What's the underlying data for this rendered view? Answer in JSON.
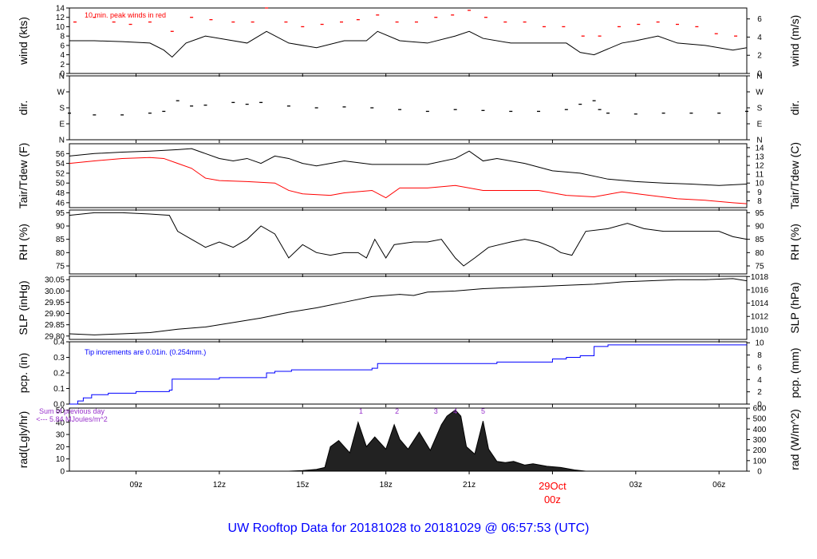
{
  "page_title": "UW Rooftop Data for 20181028  to  20181029 @ 06:57:53  (UTC)",
  "colors": {
    "black": "#000000",
    "red": "#ff0000",
    "blue": "#0000ff",
    "purple": "#9933cc",
    "title_blue": "#0000ff"
  },
  "x_axis": {
    "domain_hours": [
      6.6,
      31.0
    ],
    "ticks": [
      {
        "hour": 9,
        "label": "09z"
      },
      {
        "hour": 12,
        "label": "12z"
      },
      {
        "hour": 15,
        "label": "15z"
      },
      {
        "hour": 18,
        "label": "18z"
      },
      {
        "hour": 21,
        "label": "21z"
      },
      {
        "hour": 24,
        "label": ""
      },
      {
        "hour": 27,
        "label": "03z"
      },
      {
        "hour": 30,
        "label": "06z"
      }
    ],
    "day_marker": {
      "hour": 24,
      "line1": "29Oct",
      "line2": "00z",
      "color": "#ff0000"
    }
  },
  "chart_data": [
    {
      "type": "line",
      "id": "wind",
      "ylabel_left": "wind (kts)",
      "ylabel_right": "wind (m/s)",
      "ylim": [
        0,
        14
      ],
      "yticks_left": [
        0,
        2,
        4,
        6,
        8,
        10,
        12,
        14
      ],
      "yticks_right": [
        {
          "value": 0,
          "label": "0"
        },
        {
          "value": 3.89,
          "label": "2"
        },
        {
          "value": 7.78,
          "label": "4"
        },
        {
          "value": 11.66,
          "label": "6"
        }
      ],
      "annotation": "10 min. peak winds in red",
      "series": [
        {
          "style": "line",
          "color": "#000000",
          "x": [
            6.6,
            7.5,
            8.5,
            9.5,
            10.0,
            10.3,
            10.8,
            11.5,
            12.5,
            13.0,
            13.7,
            14.5,
            15.5,
            16.5,
            17.3,
            17.7,
            18.5,
            19.5,
            20.5,
            21.0,
            21.5,
            22.5,
            23.5,
            24.5,
            25.0,
            25.5,
            26.5,
            27.0,
            27.8,
            28.5,
            29.5,
            30.5,
            31.0
          ],
          "y": [
            7,
            7,
            6.8,
            6.5,
            5,
            3.5,
            6.5,
            8,
            7,
            6.5,
            9,
            6.5,
            5.5,
            7,
            7,
            9,
            7,
            6.5,
            8,
            9,
            7.5,
            6.5,
            6.5,
            6.5,
            4.5,
            4,
            6.5,
            7,
            8,
            6.5,
            6,
            5,
            5.5
          ]
        },
        {
          "style": "dashes",
          "color": "#ff0000",
          "x": [
            6.8,
            7.5,
            8.2,
            8.8,
            9.5,
            10.3,
            11.0,
            11.7,
            12.5,
            13.2,
            13.7,
            14.4,
            15.0,
            15.7,
            16.4,
            17.0,
            17.7,
            18.4,
            19.1,
            19.8,
            20.4,
            21.0,
            21.6,
            22.3,
            23.0,
            23.7,
            24.4,
            25.1,
            25.7,
            26.4,
            27.1,
            27.8,
            28.5,
            29.2,
            29.9,
            30.6
          ],
          "y": [
            11,
            12,
            11,
            10.5,
            11,
            9,
            12,
            11.5,
            11,
            11,
            14,
            11,
            10,
            10.5,
            11,
            11.5,
            12.5,
            11,
            11,
            12,
            12.5,
            13.5,
            12,
            11,
            11,
            10,
            10,
            8,
            8,
            10,
            10.5,
            11,
            10.5,
            10,
            8.5,
            8
          ]
        }
      ]
    },
    {
      "type": "scatter",
      "id": "dir",
      "ylabel_left": "dir.",
      "ylabel_right": "dir.",
      "ylim": [
        0,
        360
      ],
      "yticks_left": [
        {
          "value": 0,
          "label": "N"
        },
        {
          "value": 90,
          "label": "E"
        },
        {
          "value": 180,
          "label": "S"
        },
        {
          "value": 270,
          "label": "W"
        },
        {
          "value": 360,
          "label": "N"
        }
      ],
      "yticks_right": [
        {
          "value": 0,
          "label": "N"
        },
        {
          "value": 90,
          "label": "E"
        },
        {
          "value": 180,
          "label": "S"
        },
        {
          "value": 270,
          "label": "W"
        },
        {
          "value": 360,
          "label": "N"
        }
      ],
      "series": [
        {
          "style": "dashes",
          "color": "#000000",
          "x": [
            6.6,
            7.5,
            8.5,
            9.5,
            10.0,
            10.5,
            11.0,
            11.5,
            12.5,
            13.0,
            13.5,
            14.5,
            15.5,
            16.5,
            17.5,
            18.5,
            19.5,
            20.5,
            21.5,
            22.5,
            23.5,
            24.5,
            25.0,
            25.5,
            25.7,
            26.0,
            27.0,
            28.0,
            29.0,
            30.0,
            31.0
          ],
          "y": [
            150,
            140,
            140,
            150,
            160,
            220,
            190,
            195,
            210,
            200,
            210,
            190,
            180,
            185,
            180,
            170,
            160,
            170,
            165,
            160,
            160,
            170,
            200,
            220,
            170,
            150,
            145,
            150,
            150,
            150,
            160
          ]
        }
      ]
    },
    {
      "type": "line",
      "id": "temp",
      "ylabel_left": "Tair/Tdew (F)",
      "ylabel_right": "Tair/Tdew (C)",
      "ylim": [
        45,
        58
      ],
      "yticks_left": [
        46,
        48,
        50,
        52,
        54,
        56
      ],
      "yticks_right": [
        {
          "value": 46.4,
          "label": "8"
        },
        {
          "value": 48.2,
          "label": "9"
        },
        {
          "value": 50,
          "label": "10"
        },
        {
          "value": 51.8,
          "label": "11"
        },
        {
          "value": 53.6,
          "label": "12"
        },
        {
          "value": 55.4,
          "label": "13"
        },
        {
          "value": 57.2,
          "label": "14"
        }
      ],
      "series": [
        {
          "style": "line",
          "color": "#000000",
          "x": [
            6.6,
            7.5,
            8.5,
            9.5,
            10.5,
            11.0,
            11.5,
            12.0,
            12.5,
            13.0,
            13.5,
            14.0,
            14.5,
            15.0,
            15.5,
            16.5,
            17.5,
            18.5,
            19.5,
            20.5,
            21.0,
            21.5,
            22.0,
            23.0,
            24.0,
            25.0,
            26.0,
            27.0,
            28.0,
            29.0,
            30.0,
            31.0
          ],
          "y": [
            55.5,
            56,
            56.3,
            56.5,
            56.8,
            57,
            56,
            55,
            54.5,
            55,
            54,
            55.5,
            55,
            54,
            53.5,
            54.5,
            53.8,
            53.8,
            53.8,
            55,
            56.5,
            54.5,
            55,
            54,
            52.5,
            52,
            50.8,
            50.3,
            50,
            49.8,
            49.5,
            49.8
          ]
        },
        {
          "style": "line",
          "color": "#ff0000",
          "x": [
            6.6,
            7.5,
            8.5,
            9.5,
            10.0,
            10.5,
            11.0,
            11.5,
            12.0,
            13.0,
            14.0,
            14.5,
            15.0,
            16.0,
            16.5,
            17.5,
            18.0,
            18.5,
            19.5,
            20.5,
            21.5,
            22.5,
            23.5,
            24.5,
            25.5,
            26.5,
            27.5,
            28.5,
            29.5,
            30.5,
            31.0
          ],
          "y": [
            54,
            54.5,
            55,
            55.2,
            55,
            54,
            53,
            51,
            50.5,
            50.3,
            50,
            48.5,
            47.8,
            47.5,
            48,
            48.5,
            47,
            49,
            49,
            49.5,
            48.5,
            48.5,
            48.5,
            47.5,
            47.2,
            48.2,
            47.5,
            46.8,
            46.5,
            46,
            45.8
          ]
        }
      ]
    },
    {
      "type": "line",
      "id": "rh",
      "ylabel_left": "RH (%)",
      "ylabel_right": "RH (%)",
      "ylim": [
        72,
        96
      ],
      "yticks_left": [
        75,
        80,
        85,
        90,
        95
      ],
      "yticks_right": [
        {
          "value": 75,
          "label": "75"
        },
        {
          "value": 80,
          "label": "80"
        },
        {
          "value": 85,
          "label": "85"
        },
        {
          "value": 90,
          "label": "90"
        },
        {
          "value": 95,
          "label": "95"
        }
      ],
      "series": [
        {
          "style": "line",
          "color": "#000000",
          "x": [
            6.6,
            7.5,
            8.5,
            9.5,
            10.2,
            10.5,
            11.0,
            11.5,
            12.0,
            12.5,
            13.0,
            13.5,
            14.0,
            14.5,
            15.0,
            15.5,
            16.0,
            16.5,
            17.0,
            17.3,
            17.6,
            18.0,
            18.3,
            19.0,
            19.5,
            20.0,
            20.5,
            20.8,
            21.2,
            21.7,
            22.5,
            23.0,
            23.5,
            24.0,
            24.3,
            24.7,
            25.2,
            26.0,
            26.7,
            27.3,
            28.0,
            29.0,
            30.0,
            30.5,
            31.0
          ],
          "y": [
            94,
            95,
            95,
            94.5,
            94,
            88,
            85,
            82,
            84,
            82,
            85,
            90,
            87,
            78,
            83,
            80,
            79,
            80,
            80,
            78,
            85,
            78,
            83,
            84,
            84,
            85,
            78,
            75,
            78,
            82,
            84,
            85,
            84,
            82,
            80,
            79,
            88,
            89,
            91,
            89,
            88,
            88,
            88,
            86,
            85
          ]
        }
      ]
    },
    {
      "type": "line",
      "id": "slp",
      "ylabel_left": "SLP (inHg)",
      "ylabel_right": "SLP (hPa)",
      "ylim": [
        29.785,
        30.065
      ],
      "yticks_left": [
        29.8,
        29.85,
        29.9,
        29.95,
        30.0,
        30.05
      ],
      "yticks_labels_left": [
        "29.80",
        "29.85",
        "29.90",
        "29.95",
        "30.00",
        "30.05"
      ],
      "yticks_right": [
        {
          "value": 29.828,
          "label": "1010"
        },
        {
          "value": 29.887,
          "label": "1012"
        },
        {
          "value": 29.946,
          "label": "1014"
        },
        {
          "value": 30.005,
          "label": "1016"
        },
        {
          "value": 30.064,
          "label": "1018"
        }
      ],
      "series": [
        {
          "style": "line",
          "color": "#000000",
          "x": [
            6.6,
            7.5,
            8.5,
            9.5,
            10.5,
            11.5,
            12.5,
            13.5,
            14.5,
            15.5,
            16.5,
            17.5,
            18.5,
            19.0,
            19.5,
            20.5,
            21.5,
            22.5,
            23.5,
            24.5,
            25.5,
            26.5,
            27.5,
            28.5,
            29.5,
            30.5,
            31.0
          ],
          "y": [
            29.81,
            29.805,
            29.81,
            29.815,
            29.83,
            29.84,
            29.86,
            29.88,
            29.905,
            29.925,
            29.95,
            29.975,
            29.985,
            29.98,
            29.995,
            30.0,
            30.01,
            30.015,
            30.02,
            30.025,
            30.03,
            30.04,
            30.045,
            30.05,
            30.05,
            30.055,
            30.045
          ]
        }
      ]
    },
    {
      "type": "line",
      "id": "pcp",
      "ylabel_left": "pcp. (in)",
      "ylabel_right": "pcp. (mm)",
      "ylim": [
        0,
        0.4
      ],
      "yticks_left": [
        0.0,
        0.1,
        0.2,
        0.3,
        0.4
      ],
      "yticks_labels_left": [
        "0.0",
        "0.1",
        "0.2",
        "0.3",
        "0.4"
      ],
      "yticks_right": [
        {
          "value": 0,
          "label": "0"
        },
        {
          "value": 0.0787,
          "label": "2"
        },
        {
          "value": 0.1575,
          "label": "4"
        },
        {
          "value": 0.2362,
          "label": "6"
        },
        {
          "value": 0.315,
          "label": "8"
        },
        {
          "value": 0.3937,
          "label": "10"
        }
      ],
      "annotation": "Tip increments are 0.01in. (0.254mm.)",
      "series": [
        {
          "style": "step",
          "color": "#0000ff",
          "x": [
            6.6,
            6.9,
            7.1,
            7.4,
            8.0,
            9.0,
            10.2,
            10.3,
            12.0,
            13.7,
            14.0,
            14.6,
            17.5,
            17.7,
            19.5,
            22.0,
            24.0,
            24.5,
            25.0,
            25.5,
            26.0,
            31.0
          ],
          "y": [
            0.0,
            0.02,
            0.04,
            0.06,
            0.07,
            0.08,
            0.09,
            0.16,
            0.17,
            0.2,
            0.21,
            0.22,
            0.23,
            0.26,
            0.26,
            0.27,
            0.29,
            0.3,
            0.31,
            0.37,
            0.38,
            0.38
          ]
        }
      ]
    },
    {
      "type": "area",
      "id": "rad",
      "ylabel_left": "rad(Lgly/hr)",
      "ylabel_right": "rad (W/m^2)",
      "ylim": [
        0,
        51.6
      ],
      "yticks_left": [
        0,
        10,
        20,
        30,
        40,
        50
      ],
      "yticks_right": [
        {
          "value": 0,
          "label": "0"
        },
        {
          "value": 8.6,
          "label": "100"
        },
        {
          "value": 17.2,
          "label": "200"
        },
        {
          "value": 25.8,
          "label": "300"
        },
        {
          "value": 34.4,
          "label": "400"
        },
        {
          "value": 43.0,
          "label": "500"
        },
        {
          "value": 51.6,
          "label": "600"
        }
      ],
      "annotation_line1": "Sum of previous day",
      "annotation_line2": "<--- 5.84 MJoules/m^2",
      "markers": [
        {
          "hour": 17.1,
          "label": "1"
        },
        {
          "hour": 18.4,
          "label": "2"
        },
        {
          "hour": 19.8,
          "label": "3"
        },
        {
          "hour": 20.5,
          "label": "4"
        },
        {
          "hour": 21.5,
          "label": "5"
        }
      ],
      "series": [
        {
          "style": "area",
          "color": "#000000",
          "x": [
            14.5,
            15.0,
            15.5,
            15.8,
            16.0,
            16.3,
            16.7,
            17.0,
            17.3,
            17.6,
            18.0,
            18.3,
            18.5,
            18.8,
            19.2,
            19.6,
            20.0,
            20.2,
            20.5,
            20.7,
            20.9,
            21.2,
            21.5,
            21.7,
            22.0,
            22.3,
            22.6,
            23.0,
            23.3,
            23.8,
            24.3,
            24.8,
            25.2
          ],
          "y": [
            0,
            0.5,
            1.5,
            3,
            20,
            25,
            15,
            40,
            20,
            28,
            18,
            38,
            26,
            18,
            32,
            17,
            38,
            45,
            50,
            45,
            20,
            14,
            41,
            18,
            8,
            7,
            8,
            5,
            6,
            4,
            3,
            1,
            0
          ]
        }
      ]
    }
  ]
}
